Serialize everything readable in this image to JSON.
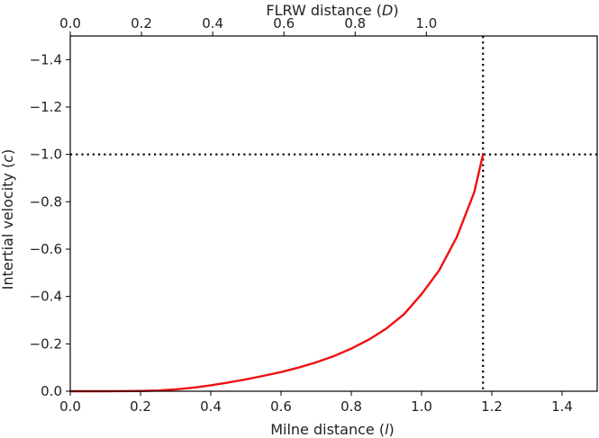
{
  "chart_data": {
    "type": "line",
    "xlabel_prefix": "Milne distance (",
    "xlabel_var": "l",
    "xlabel_suffix": ")",
    "ylabel_prefix": "Intertial velocity (",
    "ylabel_var": "c",
    "ylabel_suffix": ")",
    "top_xlabel_prefix": "FLRW distance (",
    "top_xlabel_var": "D",
    "top_xlabel_suffix": ")",
    "xlim": [
      0.0,
      1.5
    ],
    "ylim": [
      0.0,
      -1.5
    ],
    "y_inverted": true,
    "x_ticks": [
      "0.0",
      "0.2",
      "0.4",
      "0.6",
      "0.8",
      "1.0",
      "1.2",
      "1.4"
    ],
    "y_ticks": [
      "0.0",
      "−0.2",
      "−0.4",
      "−0.6",
      "−0.8",
      "−1.0",
      "−1.2",
      "−1.4"
    ],
    "y_tick_values": [
      0.0,
      -0.2,
      -0.4,
      -0.6,
      -0.8,
      -1.0,
      -1.2,
      -1.4
    ],
    "top_x_ticks": [
      "0.0",
      "0.2",
      "0.4",
      "0.6",
      "0.8",
      "1.0"
    ],
    "top_x_tick_positions": [
      0.0,
      0.2027,
      0.4055,
      0.6082,
      0.811,
      1.0137
    ],
    "series": [
      {
        "color": "#ee1111",
        "x": [
          0.0,
          0.1,
          0.2,
          0.25,
          0.3,
          0.35,
          0.4,
          0.45,
          0.5,
          0.55,
          0.6,
          0.65,
          0.7,
          0.75,
          0.8,
          0.85,
          0.9,
          0.95,
          1.0,
          1.05,
          1.1,
          1.15,
          1.175
        ],
        "y": [
          0.0,
          0.0,
          -0.001,
          -0.003,
          -0.008,
          -0.015,
          -0.025,
          -0.037,
          -0.05,
          -0.065,
          -0.081,
          -0.1,
          -0.122,
          -0.148,
          -0.18,
          -0.218,
          -0.265,
          -0.325,
          -0.41,
          -0.51,
          -0.65,
          -0.84,
          -1.0
        ]
      }
    ],
    "reference_lines": [
      {
        "orientation": "horizontal",
        "value": -1.0,
        "style": "dotted",
        "color": "#000000"
      },
      {
        "orientation": "vertical",
        "value": 1.175,
        "style": "dotted",
        "color": "#000000"
      }
    ],
    "grid": false
  }
}
